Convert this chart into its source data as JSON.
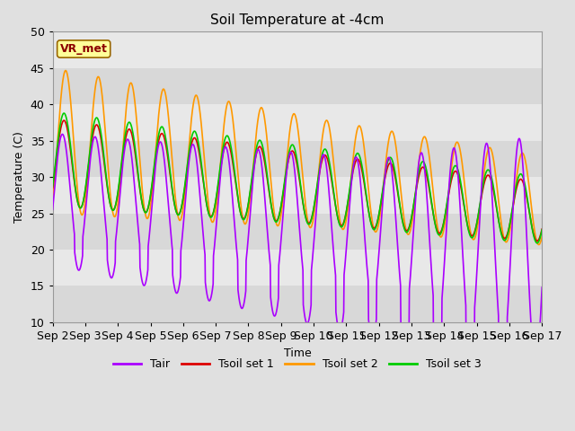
{
  "title": "Soil Temperature at -4cm",
  "xlabel": "Time",
  "ylabel": "Temperature (C)",
  "ylim": [
    10,
    50
  ],
  "n_points": 1440,
  "colors": {
    "Tair": "#aa00ff",
    "Tsoil set 1": "#dd0000",
    "Tsoil set 2": "#ff9900",
    "Tsoil set 3": "#00cc00"
  },
  "linewidth": 1.2,
  "annotation_text": "VR_met",
  "bg_color": "#e0e0e0",
  "tick_labels": [
    "Sep 2",
    "Sep 3",
    "Sep 4",
    "Sep 5",
    "Sep 6",
    "Sep 7",
    "Sep 8",
    "Sep 9",
    "Sep 10",
    "Sep 11",
    "Sep 12",
    "Sep 13",
    "Sep 14",
    "Sep 15",
    "Sep 16",
    "Sep 17"
  ],
  "yticks": [
    10,
    15,
    20,
    25,
    30,
    35,
    40,
    45,
    50
  ],
  "band_colors": [
    "#d8d8d8",
    "#e8e8e8"
  ]
}
